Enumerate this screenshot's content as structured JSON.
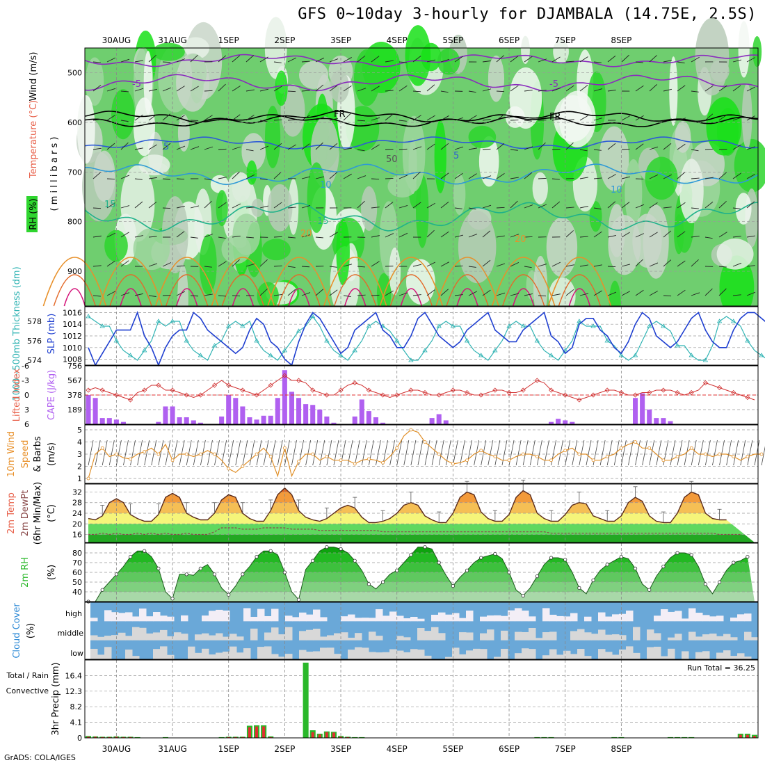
{
  "title": "GFS 0~10day 3-hourly for DJAMBALA (14.75E, 2.5S)",
  "credit": "GrADS: COLA/IGES",
  "dates": [
    "30AUG",
    "31AUG",
    "1SEP",
    "2SEP",
    "3SEP",
    "4SEP",
    "5SEP",
    "6SEP",
    "7SEP",
    "8SEP"
  ],
  "panel_labels": {
    "p1": {
      "wind": "Wind (m/s)",
      "temp": "Temperature (°C)",
      "mb": "( m i l l i b a r s )",
      "rh": "RH (%)"
    },
    "p2": {
      "thick": "1000~500mb Thickness (dm)",
      "slp": "SLP (mb)"
    },
    "p3": {
      "li": "Lifted Index",
      "cape": "CAPE (J/kg)"
    },
    "p4": {
      "t1": "10m Wind",
      "t2": "Speed",
      "t3": "& Barbs",
      "u": "(m/s)"
    },
    "p5": {
      "t1": "2m Temp",
      "t2": "2m DewPt",
      "t3": "(6hr Min/Max)",
      "u": "(°C)"
    },
    "p6": {
      "t1": "2m RH",
      "u": "(%)"
    },
    "p7": {
      "t1": "Cloud Cover",
      "u": "(%)",
      "high": "high",
      "middle": "middle",
      "low": "low"
    },
    "p8": {
      "t1": "Total / Rain",
      "t2": "Convective",
      "t3": "3hr Precip (mm)",
      "run_total": "Run Total = 36.25"
    }
  },
  "chart_data": [
    {
      "type": "heatmap",
      "panel": "cross-section",
      "ylabel": "millibars",
      "ylim": [
        970,
        450
      ],
      "yticks": [
        500,
        600,
        700,
        800,
        900
      ],
      "contours": [
        {
          "name": "Temperature (°C)",
          "labels": [
            "-5",
            "-5",
            "FR",
            "FR",
            "5",
            "5",
            "10",
            "10",
            "15",
            "15",
            "20",
            "20",
            "50"
          ]
        }
      ]
    },
    {
      "type": "line",
      "panel": "thickness-slp",
      "thickness_ticks": [
        574,
        576,
        578
      ],
      "slp_ticks": [
        1008,
        1010,
        1012,
        1014,
        1016
      ],
      "series": [
        {
          "name": "1000~500mb Thickness (dm)",
          "color": "#2fb3b3",
          "values": [
            578.5,
            578,
            577.5,
            577.5,
            576,
            575,
            574.5,
            574,
            575,
            576,
            578,
            577.5,
            578,
            578,
            576,
            575,
            574.5,
            574,
            575.5,
            576,
            577.5,
            578,
            577.5,
            578,
            576,
            575,
            574.5,
            574,
            575,
            576,
            577,
            577.5,
            578.5,
            577.5,
            576,
            575,
            574.5,
            574,
            575,
            576,
            577.5,
            578,
            577.5,
            577,
            576,
            575,
            574,
            574,
            575,
            576,
            577.5,
            578,
            577.5,
            577.5,
            576,
            575,
            574.5,
            574,
            575,
            576,
            577.5,
            578,
            577.5,
            577.5,
            576,
            575,
            574.5,
            574,
            575,
            576,
            578,
            577.5,
            577.5,
            577.5,
            576,
            575.5,
            574.5,
            574,
            574.5,
            576,
            577.5,
            578,
            577.5,
            577,
            575.5,
            575.5,
            574.5,
            574,
            574,
            575.5,
            578,
            578.5,
            578,
            577.5,
            576,
            575,
            574.5,
            574,
            574,
            574
          ]
        },
        {
          "name": "SLP (mb)",
          "color": "#1f3fd0",
          "values": [
            1010,
            1007,
            1009,
            1011,
            1013,
            1013,
            1013,
            1016,
            1012,
            1010,
            1007,
            1010,
            1012,
            1013,
            1013,
            1016,
            1015,
            1013,
            1012,
            1011,
            1010,
            1009,
            1010,
            1013,
            1015,
            1014,
            1011,
            1010,
            1008,
            1007,
            1011,
            1014,
            1016,
            1015,
            1013,
            1011,
            1009,
            1010,
            1013,
            1014,
            1015,
            1016,
            1013,
            1012,
            1010,
            1010,
            1012,
            1015,
            1016,
            1014,
            1012,
            1011,
            1010,
            1011,
            1013,
            1014,
            1015,
            1016,
            1013,
            1012,
            1011,
            1011,
            1013,
            1014,
            1015,
            1016,
            1012,
            1011,
            1009,
            1010,
            1014,
            1015,
            1015,
            1013,
            1012,
            1010,
            1009,
            1011,
            1014,
            1016,
            1015,
            1012,
            1011,
            1010,
            1011,
            1013,
            1015,
            1016,
            1013,
            1011,
            1010,
            1010,
            1013,
            1015,
            1016,
            1016,
            1015,
            1014,
            1016
          ]
        }
      ]
    },
    {
      "type": "bar",
      "panel": "cape-li",
      "li_ticks": [
        -6,
        -3,
        0,
        3,
        6
      ],
      "cape_ticks": [
        189,
        378,
        567,
        756
      ],
      "li_values": [
        -1,
        -1.5,
        -1,
        -0.5,
        0,
        0.5,
        1,
        -0.5,
        -1,
        -2,
        -2,
        -1,
        -1,
        -0.5,
        0,
        0.5,
        0,
        -1,
        -2,
        -3,
        -2,
        -1.5,
        -1,
        -0.5,
        0,
        -1,
        -2,
        -3,
        -4,
        -3,
        -3,
        -2.5,
        -1,
        -0.5,
        0,
        0,
        -1,
        -2,
        -2.5,
        -2,
        -1,
        -0.5,
        0,
        0.5,
        0,
        -0.5,
        -1,
        -1,
        -0.5,
        0,
        0,
        -0.5,
        -1,
        -1,
        -0.5,
        0,
        0,
        -0.5,
        -1,
        -1,
        -0.5,
        -0.5,
        -1,
        -2,
        -3,
        -2.5,
        -1,
        -0.5,
        0,
        0.5,
        1,
        0.5,
        0,
        -0.5,
        -1,
        -1,
        -0.5,
        0,
        0,
        -0.5,
        -0.5,
        -1,
        -1,
        -1,
        -0.5,
        0,
        -0.5,
        -1,
        -2.5,
        -2,
        -1.5,
        -1,
        -0.5,
        0,
        0.5,
        1
      ],
      "cape_values": [
        378,
        340,
        80,
        80,
        60,
        30,
        0,
        0,
        0,
        0,
        30,
        230,
        230,
        90,
        90,
        50,
        20,
        0,
        0,
        100,
        380,
        340,
        230,
        90,
        60,
        110,
        110,
        340,
        700,
        420,
        340,
        260,
        250,
        190,
        100,
        20,
        0,
        0,
        100,
        320,
        170,
        90,
        20,
        0,
        0,
        0,
        0,
        0,
        0,
        80,
        130,
        50,
        0,
        0,
        0,
        0,
        0,
        0,
        0,
        0,
        0,
        0,
        0,
        0,
        0,
        0,
        30,
        70,
        50,
        30,
        0,
        0,
        0,
        0,
        0,
        0,
        0,
        0,
        340,
        400,
        190,
        80,
        80,
        40,
        0,
        0,
        0,
        0,
        0,
        0,
        0,
        0,
        0,
        0,
        0,
        0,
        0
      ],
      "threshold": 0
    },
    {
      "type": "line",
      "panel": "10m-wind",
      "yticks": [
        1,
        2,
        3,
        4,
        5
      ],
      "series": [
        {
          "name": "10m Wind Speed",
          "color": "#e0902a",
          "values": [
            1,
            3,
            3.5,
            2.8,
            3,
            2.7,
            2.6,
            3,
            3.2,
            3.5,
            3,
            3.8,
            2.5,
            3,
            3,
            2.8,
            3,
            3.3,
            3,
            2.5,
            1.8,
            1.5,
            2,
            2.5,
            3,
            3.5,
            2.8,
            1.2,
            3.5,
            1.2,
            2.4,
            3,
            3,
            2.5,
            2.8,
            2.5,
            2.5,
            2.5,
            2.2,
            2.5,
            2.6,
            2.5,
            2.3,
            2.8,
            3.5,
            4.5,
            5,
            4.8,
            4,
            3.5,
            3,
            2.5,
            2.2,
            2.3,
            2.5,
            3,
            3.3,
            3,
            2.8,
            2.5,
            2.5,
            2.8,
            3,
            3,
            2.8,
            2.5,
            2.5,
            3,
            3.3,
            3.5,
            3,
            3,
            2.5,
            2.5,
            2.8,
            3,
            3.5,
            3.8,
            4,
            3.5,
            3.5,
            3,
            2.5,
            2.5,
            2.8,
            3,
            3.5,
            3,
            3,
            2.8,
            3,
            3,
            2.8,
            2.5,
            2.8,
            3,
            3
          ]
        }
      ]
    },
    {
      "type": "area",
      "panel": "2m-temp",
      "yticks": [
        16,
        20,
        24,
        28,
        32
      ],
      "series": [
        {
          "name": "2m Temp",
          "values": [
            22,
            21.5,
            23,
            28,
            29.5,
            28,
            23.5,
            22,
            21,
            21,
            23.5,
            30,
            31.5,
            30,
            24,
            22.5,
            21.5,
            21.5,
            24,
            29,
            31,
            30,
            24,
            22,
            21,
            21,
            25,
            31,
            33.5,
            31,
            25,
            22.5,
            21.5,
            21,
            22,
            24,
            26,
            27,
            26,
            22.5,
            20.5,
            20.5,
            21,
            22,
            24,
            27,
            28,
            27,
            23,
            21.5,
            20.5,
            20.5,
            24,
            30,
            32,
            31,
            24.5,
            22,
            21,
            21,
            23.5,
            30,
            32.5,
            31,
            24,
            22,
            21,
            21,
            23.5,
            27,
            28,
            27.5,
            23,
            22,
            21,
            21,
            23,
            28,
            30,
            28.5,
            23,
            21,
            20.5,
            20.5,
            24,
            30,
            32,
            31,
            24,
            22,
            21.5,
            21.5
          ]
        },
        {
          "name": "2m DewPt",
          "values": [
            16,
            16,
            16.5,
            16,
            16.5,
            16,
            16,
            16.5,
            16,
            16.5,
            16,
            16.5,
            16,
            16,
            16.5,
            16,
            16,
            16,
            17,
            18.5,
            18.5,
            18.5,
            18,
            18,
            18,
            18.5,
            18.5,
            18.5,
            18.5,
            18,
            18,
            18,
            18,
            17.5,
            17.5,
            17.5,
            17.5,
            17.5,
            17.5,
            17.5,
            17.5,
            17.5,
            17,
            17,
            17,
            17,
            17,
            17,
            17,
            17,
            17,
            17,
            17,
            17,
            17,
            17,
            17,
            17,
            17,
            17,
            17,
            17,
            17,
            17,
            17,
            17,
            16.5,
            16.5,
            16.5,
            16.5,
            16.5,
            16.5,
            16.5,
            16.5,
            16.5,
            16.5,
            16.5,
            16.5,
            16.5,
            16.5,
            16.5,
            16.5,
            16.5,
            16.5,
            16.5,
            16.5,
            16.5,
            16.5,
            16.5,
            16.5,
            16,
            16,
            16,
            16
          ]
        }
      ]
    },
    {
      "type": "area",
      "panel": "2m-rh",
      "yticks": [
        40,
        50,
        60,
        70,
        80
      ],
      "series": [
        {
          "name": "2m RH",
          "values": [
            30,
            30,
            42,
            50,
            58,
            66,
            76,
            82,
            82,
            76,
            64,
            40,
            33,
            58,
            58,
            57,
            64,
            68,
            58,
            44,
            37,
            46,
            58,
            66,
            76,
            82,
            82,
            78,
            60,
            40,
            32,
            63,
            72,
            82,
            86,
            86,
            84,
            80,
            72,
            62,
            48,
            43,
            50,
            58,
            62,
            70,
            78,
            86,
            86,
            84,
            70,
            57,
            46,
            55,
            62,
            70,
            75,
            77,
            79,
            74,
            60,
            42,
            36,
            44,
            56,
            68,
            75,
            75,
            73,
            60,
            44,
            38,
            52,
            62,
            68,
            72,
            76,
            74,
            64,
            48,
            42,
            56,
            66,
            75,
            80,
            80,
            78,
            66,
            48,
            38,
            50,
            62,
            70,
            72,
            76
          ]
        }
      ]
    },
    {
      "type": "heatmap",
      "panel": "cloud-cover",
      "rows": [
        "high",
        "middle",
        "low"
      ]
    },
    {
      "type": "bar",
      "panel": "precip",
      "ylabel": "3hr Precip (mm)",
      "yticks": [
        0,
        4.1,
        8.2,
        12.3,
        16.4
      ],
      "ylim": [
        0,
        20.5
      ],
      "total_values": [
        0.5,
        0.4,
        0.3,
        0.3,
        0.4,
        0.3,
        0.3,
        0.2,
        0,
        0,
        0,
        0.2,
        0,
        0,
        0,
        0,
        0,
        0,
        0,
        0.2,
        0.3,
        0.3,
        0.3,
        3.2,
        3.3,
        3.3,
        0.4,
        0,
        0,
        0,
        0,
        19.8,
        2,
        1.1,
        1.7,
        1.6,
        0.5,
        0.3,
        0.2,
        0.2,
        0,
        0,
        0,
        0,
        0,
        0,
        0,
        0,
        0,
        0,
        0,
        0,
        0,
        0,
        0,
        0,
        0,
        0,
        0,
        0,
        0,
        0,
        0,
        0,
        0.2,
        0.2,
        0.2,
        0,
        0,
        0,
        0,
        0,
        0,
        0,
        0,
        0.2,
        0.2,
        0,
        0,
        0,
        0,
        0,
        0,
        0.2,
        0.2,
        0.2,
        0.2,
        0,
        0,
        0,
        0,
        0,
        0,
        1.1,
        1.1,
        0.8
      ],
      "conv_values": [
        0.3,
        0.3,
        0.2,
        0.2,
        0.3,
        0.2,
        0.2,
        0.1,
        0,
        0,
        0,
        0.1,
        0,
        0,
        0,
        0,
        0,
        0,
        0,
        0.1,
        0.2,
        0.2,
        0.2,
        2.8,
        3,
        3,
        0.2,
        0,
        0,
        0,
        0,
        0,
        1.5,
        0.9,
        1.5,
        1.4,
        0.3,
        0.2,
        0.1,
        0.1,
        0,
        0,
        0,
        0,
        0,
        0,
        0,
        0,
        0,
        0,
        0,
        0,
        0,
        0,
        0,
        0,
        0,
        0,
        0,
        0,
        0,
        0,
        0,
        0,
        0.1,
        0.1,
        0.1,
        0,
        0,
        0,
        0,
        0,
        0,
        0,
        0,
        0.1,
        0.1,
        0,
        0,
        0,
        0,
        0,
        0,
        0.1,
        0.1,
        0.1,
        0.1,
        0,
        0,
        0,
        0,
        0,
        0,
        0.8,
        0.8,
        0.5
      ]
    }
  ]
}
